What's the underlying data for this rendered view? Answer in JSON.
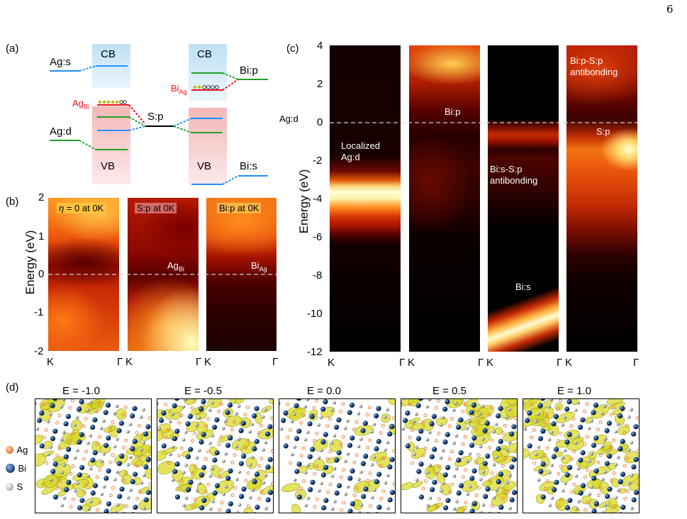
{
  "page_number": "6",
  "panel_labels": {
    "a": "(a)",
    "b": "(b)",
    "c": "(c)",
    "d": "(d)"
  },
  "panel_a": {
    "labels": {
      "ag_s": "Ag:s",
      "cb_left": "CB",
      "cb_right": "CB",
      "bi_p": "Bi:p",
      "bi_ag_main": "Bi",
      "bi_ag_sub": "Ag",
      "ag_bi_main": "Ag",
      "ag_bi_sub": "Bi",
      "s_p": "S:p",
      "ag_d": "Ag:d",
      "vb_left": "VB",
      "vb_right": "VB",
      "bi_s": "Bi:s"
    },
    "colors": {
      "cb": "#cfe7f7",
      "vb": "#f6c7c7",
      "blue": "#1e90ff",
      "green": "#22a02a",
      "red": "#e8141c",
      "dot": "#c8b400"
    }
  },
  "panel_b": {
    "ylabel": "Energy (eV)",
    "yticks": [
      "2",
      "1",
      "0",
      "-1",
      "-2"
    ],
    "xticks": [
      "K",
      "Γ"
    ],
    "maps": [
      {
        "title_eta": "η",
        "title": " = 0 at 0K"
      },
      {
        "title": "S:p at 0K",
        "annotation_main": "Ag",
        "annotation_sub": "Bi"
      },
      {
        "title": "Bi:p at 0K",
        "annotation_main": "Bi",
        "annotation_sub": "Ag"
      }
    ]
  },
  "panel_c": {
    "ylabel": "Energy (eV)",
    "yticks": [
      "4",
      "2",
      "0",
      "-2",
      "-4",
      "-6",
      "-8",
      "-10",
      "-12"
    ],
    "fermi_label": "Ag:d",
    "xticks": [
      "K",
      "Γ"
    ],
    "annotations": {
      "localized": "Localized",
      "ag_d": "Ag:d",
      "bi_p": "Bi:p",
      "bis_sp": "Bi:s-S:p",
      "antibonding": "antibonding",
      "bi_s": "Bi:s",
      "bip_sp": "Bi:p-S:p",
      "antibonding2": "antibonding",
      "s_p": "S:p"
    }
  },
  "panel_d": {
    "titles": [
      "E = -1.0",
      "E = -0.5",
      "E = 0.0",
      "E = 0.5",
      "E = 1.0"
    ],
    "legend": [
      {
        "name": "Ag",
        "color": "#e8864a"
      },
      {
        "name": "Bi",
        "color": "#1f4e8c"
      },
      {
        "name": "S",
        "color": "#b9b9b9"
      }
    ]
  }
}
